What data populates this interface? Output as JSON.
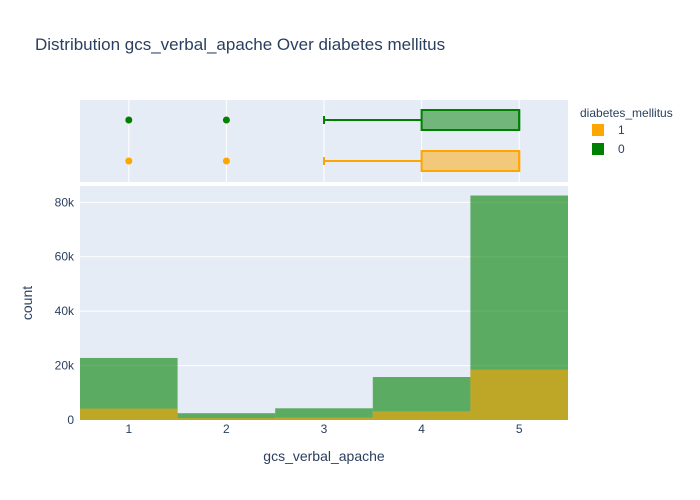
{
  "chart_data": {
    "type": "bar",
    "title": "Distribution gcs_verbal_apache Over diabetes mellitus",
    "xlabel": "gcs_verbal_apache",
    "ylabel": "count",
    "barmode": "overlay",
    "categories": [
      "1",
      "2",
      "3",
      "4",
      "5"
    ],
    "x": [
      1,
      2,
      3,
      4,
      5
    ],
    "ylim": [
      0,
      86000
    ],
    "yticks": [
      0,
      20000,
      40000,
      60000,
      80000
    ],
    "ytick_labels": [
      "0",
      "20k",
      "40k",
      "60k",
      "80k"
    ],
    "grid": true,
    "legend": {
      "title": "diabetes_mellitus",
      "placement": "top-right"
    },
    "series": [
      {
        "name": "0",
        "color": "#008000",
        "values": [
          22800,
          2500,
          4300,
          15800,
          82500
        ]
      },
      {
        "name": "1",
        "color": "#FFA500",
        "values": [
          4200,
          700,
          900,
          3200,
          18500
        ]
      }
    ],
    "box": [
      {
        "name": "0",
        "color": "#008000",
        "q1": 4,
        "median": 5,
        "q3": 5,
        "whisker_low": 3,
        "whisker_high": 5,
        "outliers": [
          1,
          2
        ]
      },
      {
        "name": "1",
        "color": "#FFA500",
        "q1": 4,
        "median": 5,
        "q3": 5,
        "whisker_low": 3,
        "whisker_high": 5,
        "outliers": [
          1,
          2
        ]
      }
    ]
  }
}
